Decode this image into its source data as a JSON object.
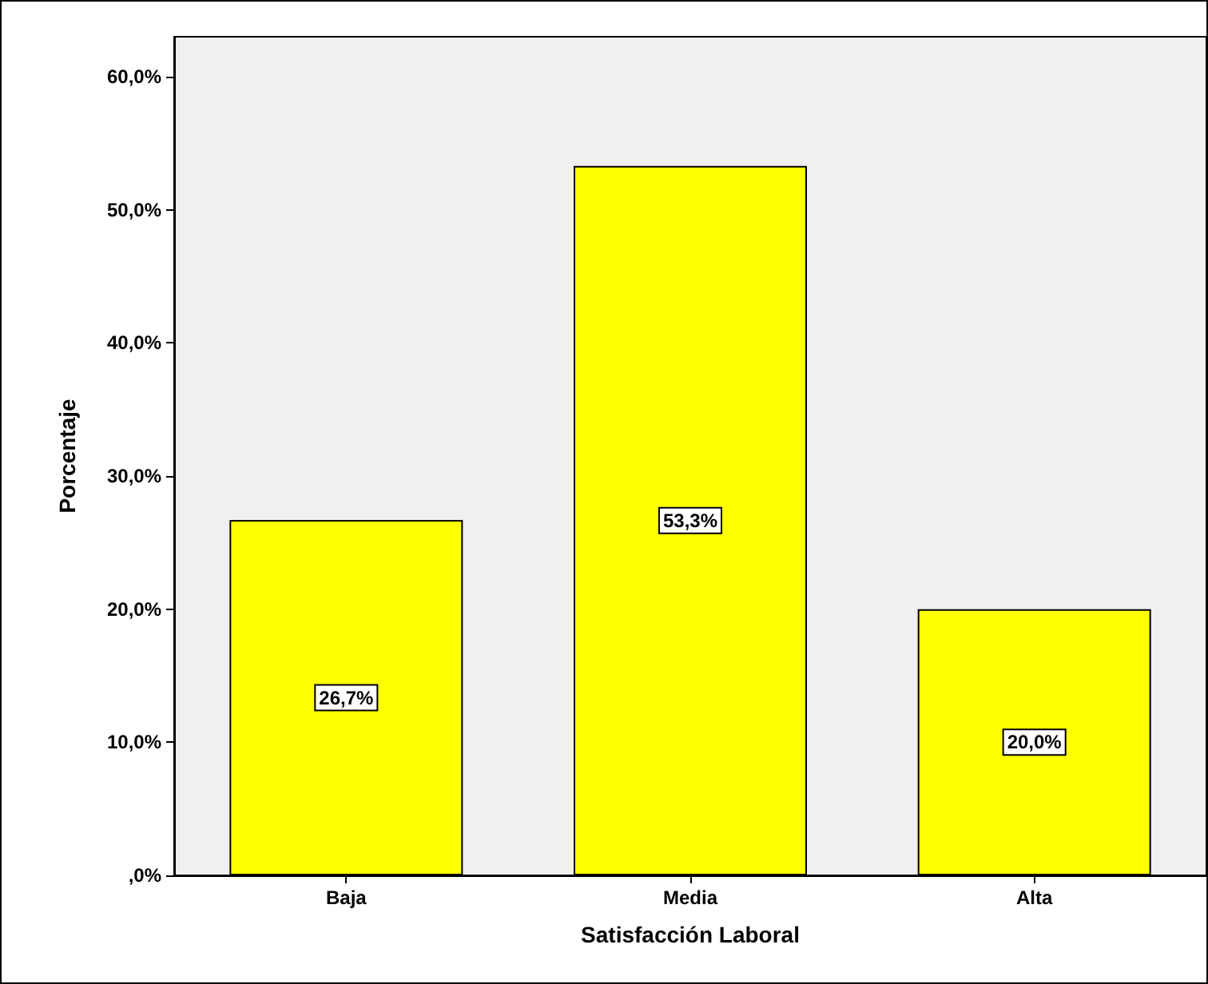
{
  "chart_data": {
    "type": "bar",
    "xlabel": "Satisfacción Laboral",
    "ylabel": "Porcentaje",
    "categories": [
      "Baja",
      "Media",
      "Alta"
    ],
    "values": [
      26.7,
      53.3,
      20.0
    ],
    "value_labels": [
      "26,7%",
      "53,3%",
      "20,0%"
    ],
    "color": "#ffff00",
    "ylim": [
      0,
      63
    ],
    "yticks": [
      {
        "value": 0,
        "label": ",0%"
      },
      {
        "value": 10,
        "label": "10,0%"
      },
      {
        "value": 20,
        "label": "20,0%"
      },
      {
        "value": 30,
        "label": "30,0%"
      },
      {
        "value": 40,
        "label": "40,0%"
      },
      {
        "value": 50,
        "label": "50,0%"
      },
      {
        "value": 60,
        "label": "60,0%"
      }
    ],
    "grid": false
  }
}
